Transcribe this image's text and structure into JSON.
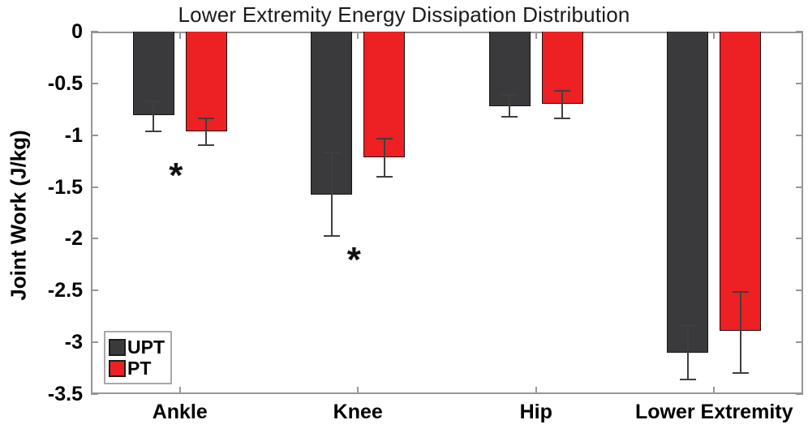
{
  "title": "Lower Extremity Energy Dissipation Distribution",
  "chart_data": {
    "type": "bar",
    "title": "Lower Extremity Energy Dissipation Distribution",
    "ylabel": "Joint Work (J/kg)",
    "xlabel": "",
    "categories": [
      "Ankle",
      "Knee",
      "Hip",
      "Lower Extremity"
    ],
    "ylim": [
      -3.5,
      0
    ],
    "yticks": [
      0,
      -0.5,
      -1,
      -1.5,
      -2,
      -2.5,
      -3,
      -3.5
    ],
    "ytick_labels": [
      "0",
      "-0.5",
      "-1",
      "-1.5",
      "-2",
      "-2.5",
      "-3",
      "-3.5"
    ],
    "grid": false,
    "legend_position": "inside-bottom-left",
    "series": [
      {
        "name": "UPT",
        "color": "#3a3a3c",
        "values": [
          -0.81,
          -1.57,
          -0.72,
          -3.1
        ],
        "error_upper": [
          -0.67,
          -1.17,
          -0.61,
          -2.84
        ],
        "error_lower": [
          -0.96,
          -1.97,
          -0.82,
          -3.36
        ]
      },
      {
        "name": "PT",
        "color": "#ed2024",
        "values": [
          -0.96,
          -1.21,
          -0.7,
          -2.89
        ],
        "error_upper": [
          -0.84,
          -1.03,
          -0.57,
          -2.51
        ],
        "error_lower": [
          -1.1,
          -1.4,
          -0.84,
          -3.3
        ]
      }
    ],
    "annotations": [
      {
        "symbol": "*",
        "category": "Ankle",
        "value": -1.35
      },
      {
        "symbol": "*",
        "category": "Knee",
        "value": -2.16
      }
    ]
  },
  "colors": {
    "axis_frame": "#969696",
    "error_bar": "#3f3f3f",
    "upt_bar": "#3a3a3c",
    "pt_bar": "#ed2024",
    "text": "#000000"
  }
}
